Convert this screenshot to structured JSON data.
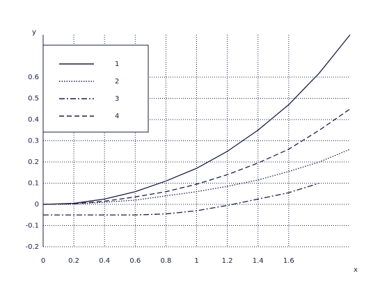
{
  "chart_data": {
    "type": "line",
    "x_label": "x",
    "y_label": "y",
    "x": [
      0,
      0.2,
      0.4,
      0.6,
      0.8,
      1.0,
      1.2,
      1.4,
      1.6,
      1.8,
      2.0
    ],
    "series": [
      {
        "name": "1",
        "color": "#1a1a4a",
        "dash": "solid",
        "values": [
          0,
          0.005,
          0.025,
          0.06,
          0.11,
          0.17,
          0.25,
          0.35,
          0.47,
          0.62,
          0.8
        ]
      },
      {
        "name": "2",
        "color": "#1a1a4a",
        "dash": "dotted",
        "values": [
          0,
          0.002,
          0.01,
          0.02,
          0.04,
          0.06,
          0.085,
          0.115,
          0.155,
          0.2,
          0.26
        ]
      },
      {
        "name": "3",
        "color": "#1a1a4a",
        "dash": "dashdot",
        "values": [
          -0.05,
          -0.05,
          -0.05,
          -0.05,
          -0.045,
          -0.03,
          -0.005,
          0.025,
          0.055,
          0.1,
          null
        ]
      },
      {
        "name": "4",
        "color": "#1a1a4a",
        "dash": "dashed",
        "values": [
          0,
          0.003,
          0.015,
          0.035,
          0.06,
          0.095,
          0.14,
          0.195,
          0.26,
          0.35,
          0.45
        ]
      }
    ],
    "xlim": [
      0,
      2.0
    ],
    "ylim": [
      -0.2,
      0.8
    ],
    "xticks": [
      0,
      0.2,
      0.4,
      0.6,
      0.8,
      1,
      1.2,
      1.4,
      1.6
    ],
    "yticks": [
      -0.2,
      -0.1,
      0,
      0.1,
      0.2,
      0.3,
      0.4,
      0.5,
      0.6
    ],
    "grid": true,
    "legend": "upper left"
  }
}
